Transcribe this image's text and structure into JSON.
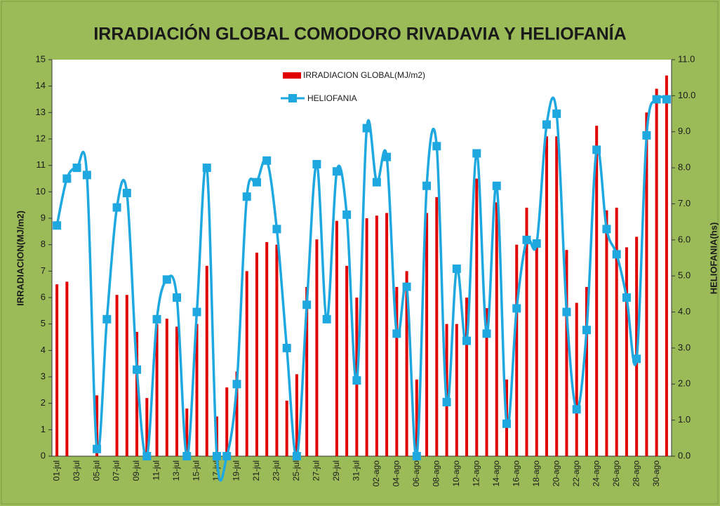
{
  "chart_data": {
    "type": "bar",
    "title": "IRRADIACIÓN  GLOBAL COMODORO RIVADAVIA  Y HELIOFANÍA",
    "y_label": "IRRADIACION(MJ/m2)",
    "y2_label": "HELIOFANIA(hs)",
    "categories": [
      "01-jul",
      null,
      "03-jul",
      null,
      "05-jul",
      null,
      "07-jul",
      null,
      "09-jul",
      null,
      "11-jul",
      null,
      "13-jul",
      null,
      "15-jul",
      null,
      "17-jul",
      null,
      "19-jul",
      null,
      "21-jul",
      null,
      "23-jul",
      null,
      "25-jul",
      null,
      "27-jul",
      null,
      "29-jul",
      null,
      "31-jul",
      null,
      "02-ago",
      null,
      "04-ago",
      null,
      "06-ago",
      null,
      "08-ago",
      null,
      "10-ago",
      null,
      "12-ago",
      null,
      "14-ago",
      null,
      "16-ago",
      null,
      "18-ago",
      null,
      "20-ago",
      null,
      "22-ago",
      null,
      "24-ago",
      null,
      "26-ago",
      null,
      "28-ago",
      null,
      "30-ago",
      null
    ],
    "series": [
      {
        "name": "IRRADIACION GLOBAL(MJ/m2)",
        "type": "bar",
        "color": "#e00000",
        "values": [
          6.5,
          6.6,
          0,
          0,
          2.3,
          0,
          6.1,
          6.1,
          4.7,
          2.2,
          5.0,
          5.2,
          4.9,
          1.8,
          5.0,
          7.2,
          1.5,
          2.6,
          3.2,
          7.0,
          7.7,
          8.1,
          8.0,
          2.1,
          3.1,
          6.4,
          8.2,
          0,
          8.9,
          7.2,
          6.0,
          9.0,
          9.1,
          9.2,
          6.4,
          7.0,
          2.9,
          9.2,
          9.8,
          5.0,
          5.0,
          6.0,
          10.5,
          5.6,
          9.6,
          2.9,
          8.0,
          9.4,
          8.0,
          12.1,
          12.1,
          7.8,
          5.8,
          6.4,
          12.5,
          9.3,
          9.4,
          7.9,
          8.3,
          13.0,
          13.9,
          14.4
        ]
      },
      {
        "name": "HELIOFANIA",
        "type": "line",
        "axis": "y2",
        "color": "#1fa8e0",
        "values": [
          6.4,
          7.7,
          8.0,
          7.8,
          0.2,
          3.8,
          6.9,
          7.3,
          2.4,
          0.0,
          3.8,
          4.9,
          4.4,
          0.0,
          4.0,
          8.0,
          0.0,
          0.0,
          2.0,
          7.2,
          7.6,
          8.2,
          6.3,
          3.0,
          0.0,
          4.2,
          8.1,
          3.8,
          7.9,
          6.7,
          2.1,
          9.1,
          7.6,
          8.3,
          3.4,
          4.7,
          0.0,
          7.5,
          8.6,
          1.5,
          5.2,
          3.2,
          8.4,
          3.4,
          7.5,
          0.9,
          4.1,
          6.0,
          5.9,
          9.2,
          9.5,
          4.0,
          1.3,
          3.5,
          8.5,
          6.3,
          5.6,
          4.4,
          2.7,
          8.9,
          9.9,
          9.9
        ]
      }
    ],
    "ylim": [
      0,
      15
    ],
    "yticks": [
      0,
      1,
      2,
      3,
      4,
      5,
      6,
      7,
      8,
      9,
      10,
      11,
      12,
      13,
      14,
      15
    ],
    "y2lim": [
      0,
      11
    ],
    "y2ticks": [
      {
        "value": 0,
        "label": "0.0"
      },
      {
        "value": 1,
        "label": "1.0"
      },
      {
        "value": 2,
        "label": "2.0"
      },
      {
        "value": 3,
        "label": "3.0"
      },
      {
        "value": 4,
        "label": "4.0"
      },
      {
        "value": 5,
        "label": "5.0"
      },
      {
        "value": 6,
        "label": "6.0"
      },
      {
        "value": 7,
        "label": "7.0"
      },
      {
        "value": 8,
        "label": "8.0"
      },
      {
        "value": 9,
        "label": "9.0"
      },
      {
        "value": 10,
        "label": "10.0"
      },
      {
        "value": 11,
        "label": "11.0"
      }
    ],
    "legend": "top"
  }
}
